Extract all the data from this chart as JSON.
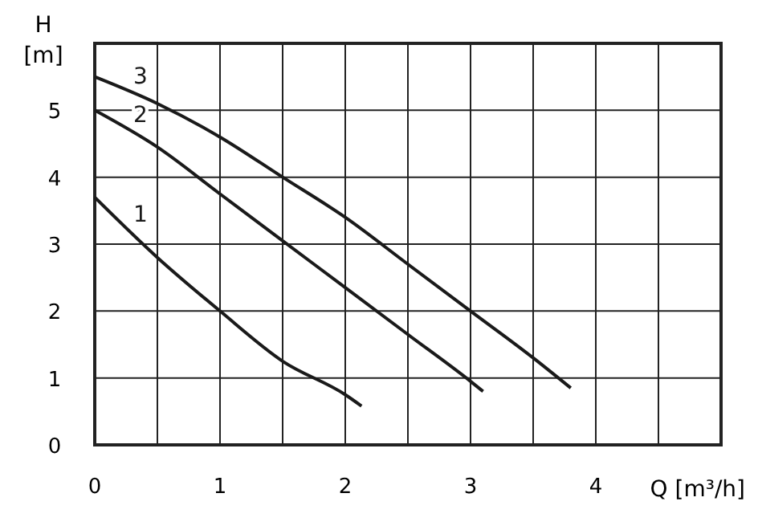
{
  "chart_data": {
    "type": "line",
    "xlabel": "Q [m³/h]",
    "ylabel": "H [m]",
    "xlim": [
      0,
      5
    ],
    "ylim": [
      0,
      6
    ],
    "xticks": [
      0,
      {
        "value": 0.5,
        "label": null
      },
      1,
      {
        "value": 1.5,
        "label": null
      },
      2,
      {
        "value": 2.5,
        "label": null
      },
      3,
      {
        "value": 3.5,
        "label": null
      },
      4,
      {
        "value": 4.5,
        "label": null
      },
      {
        "value": 5,
        "label": null
      }
    ],
    "yticks": [
      0,
      1,
      2,
      3,
      4,
      5,
      {
        "value": 6,
        "label": null
      }
    ],
    "grid": true,
    "marker": "none",
    "line_style": "solid",
    "series": [
      {
        "name": "1",
        "color": "#1a1a1a",
        "x": [
          0,
          0.5,
          1,
          1.5,
          2,
          2.13
        ],
        "values": [
          3.7,
          2.8,
          2.0,
          1.25,
          0.75,
          0.58
        ]
      },
      {
        "name": "2",
        "color": "#1a1a1a",
        "x": [
          0,
          0.5,
          1,
          1.5,
          2,
          2.5,
          3,
          3.1
        ],
        "values": [
          5.0,
          4.45,
          3.75,
          3.05,
          2.35,
          1.65,
          0.95,
          0.8
        ]
      },
      {
        "name": "3",
        "color": "#1a1a1a",
        "x": [
          0,
          0.5,
          1,
          1.5,
          2,
          2.5,
          3,
          3.5,
          3.8
        ],
        "values": [
          5.5,
          5.1,
          4.6,
          4.0,
          3.4,
          2.7,
          2.0,
          1.3,
          0.85
        ]
      }
    ]
  }
}
